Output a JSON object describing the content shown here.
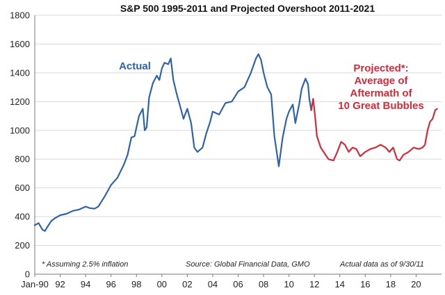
{
  "chart_data": {
    "type": "line",
    "title": "S&P 500 1995-2011 and Projected Overshoot 2011-2021",
    "xlabel": "",
    "ylabel": "",
    "ylim": [
      0,
      1800
    ],
    "xlim": [
      1990,
      2022
    ],
    "grid": true,
    "y_ticks": [
      "0",
      "200",
      "400",
      "600",
      "800",
      "1000",
      "1200",
      "1400",
      "1600",
      "1800"
    ],
    "x_ticks": [
      "Jan-90",
      "92",
      "94",
      "96",
      "98",
      "00",
      "02",
      "04",
      "06",
      "08",
      "10",
      "12",
      "14",
      "16",
      "18",
      "20"
    ],
    "series": [
      {
        "name": "Actual",
        "color": "#2e62ad",
        "x": [
          1990.0,
          1990.3,
          1990.6,
          1990.8,
          1991.0,
          1991.3,
          1991.6,
          1992.0,
          1992.5,
          1993.0,
          1993.5,
          1994.0,
          1994.3,
          1994.7,
          1995.0,
          1995.5,
          1996.0,
          1996.5,
          1997.0,
          1997.3,
          1997.6,
          1997.85,
          1998.2,
          1998.5,
          1998.65,
          1998.8,
          1999.0,
          1999.3,
          1999.6,
          1999.8,
          2000.0,
          2000.2,
          2000.5,
          2000.7,
          2000.9,
          2001.2,
          2001.4,
          2001.7,
          2002.0,
          2002.3,
          2002.55,
          2002.8,
          2003.2,
          2003.5,
          2003.8,
          2004.0,
          2004.5,
          2005.0,
          2005.5,
          2006.0,
          2006.5,
          2007.0,
          2007.4,
          2007.6,
          2007.8,
          2008.0,
          2008.3,
          2008.6,
          2008.85,
          2009.2,
          2009.5,
          2009.8,
          2010.0,
          2010.3,
          2010.5,
          2010.8,
          2011.0,
          2011.3,
          2011.5,
          2011.6,
          2011.75
        ],
        "y": [
          340,
          355,
          310,
          300,
          330,
          370,
          390,
          410,
          420,
          440,
          450,
          470,
          460,
          455,
          470,
          540,
          620,
          670,
          760,
          830,
          950,
          960,
          1100,
          1150,
          1000,
          1020,
          1230,
          1330,
          1380,
          1350,
          1430,
          1470,
          1460,
          1500,
          1350,
          1240,
          1180,
          1080,
          1150,
          1050,
          880,
          850,
          880,
          980,
          1060,
          1130,
          1110,
          1190,
          1200,
          1270,
          1300,
          1400,
          1500,
          1530,
          1490,
          1400,
          1300,
          1250,
          960,
          750,
          950,
          1080,
          1130,
          1180,
          1050,
          1180,
          1290,
          1360,
          1320,
          1220,
          1140
        ]
      },
      {
        "name": "Projected*: Average of Aftermath of 10 Great Bubbles",
        "color": "#d42a3a",
        "x": [
          2011.75,
          2011.9,
          2012.05,
          2012.2,
          2012.5,
          2012.8,
          2013.1,
          2013.5,
          2013.8,
          2014.1,
          2014.4,
          2014.7,
          2015.0,
          2015.3,
          2015.6,
          2016.0,
          2016.4,
          2016.8,
          2017.2,
          2017.6,
          2017.9,
          2018.2,
          2018.5,
          2018.7,
          2019.0,
          2019.4,
          2019.8,
          2020.2,
          2020.5,
          2020.7,
          2020.9,
          2021.1,
          2021.3,
          2021.5,
          2021.65
        ],
        "y": [
          1140,
          1220,
          1100,
          960,
          880,
          840,
          800,
          790,
          850,
          920,
          900,
          850,
          880,
          870,
          820,
          850,
          870,
          880,
          900,
          880,
          850,
          880,
          800,
          790,
          830,
          850,
          880,
          870,
          880,
          900,
          1000,
          1060,
          1080,
          1140,
          1150
        ]
      }
    ],
    "annotations": {
      "actual_label": "Actual",
      "projected_label": [
        "Projected*:",
        "Average of",
        "Aftermath of",
        "10 Great Bubbles"
      ],
      "footnote": "* Assuming 2.5% inflation",
      "source": "Source:  Global Financial Data, GMO",
      "data_note": "Actual data as of 9/30/11"
    }
  }
}
